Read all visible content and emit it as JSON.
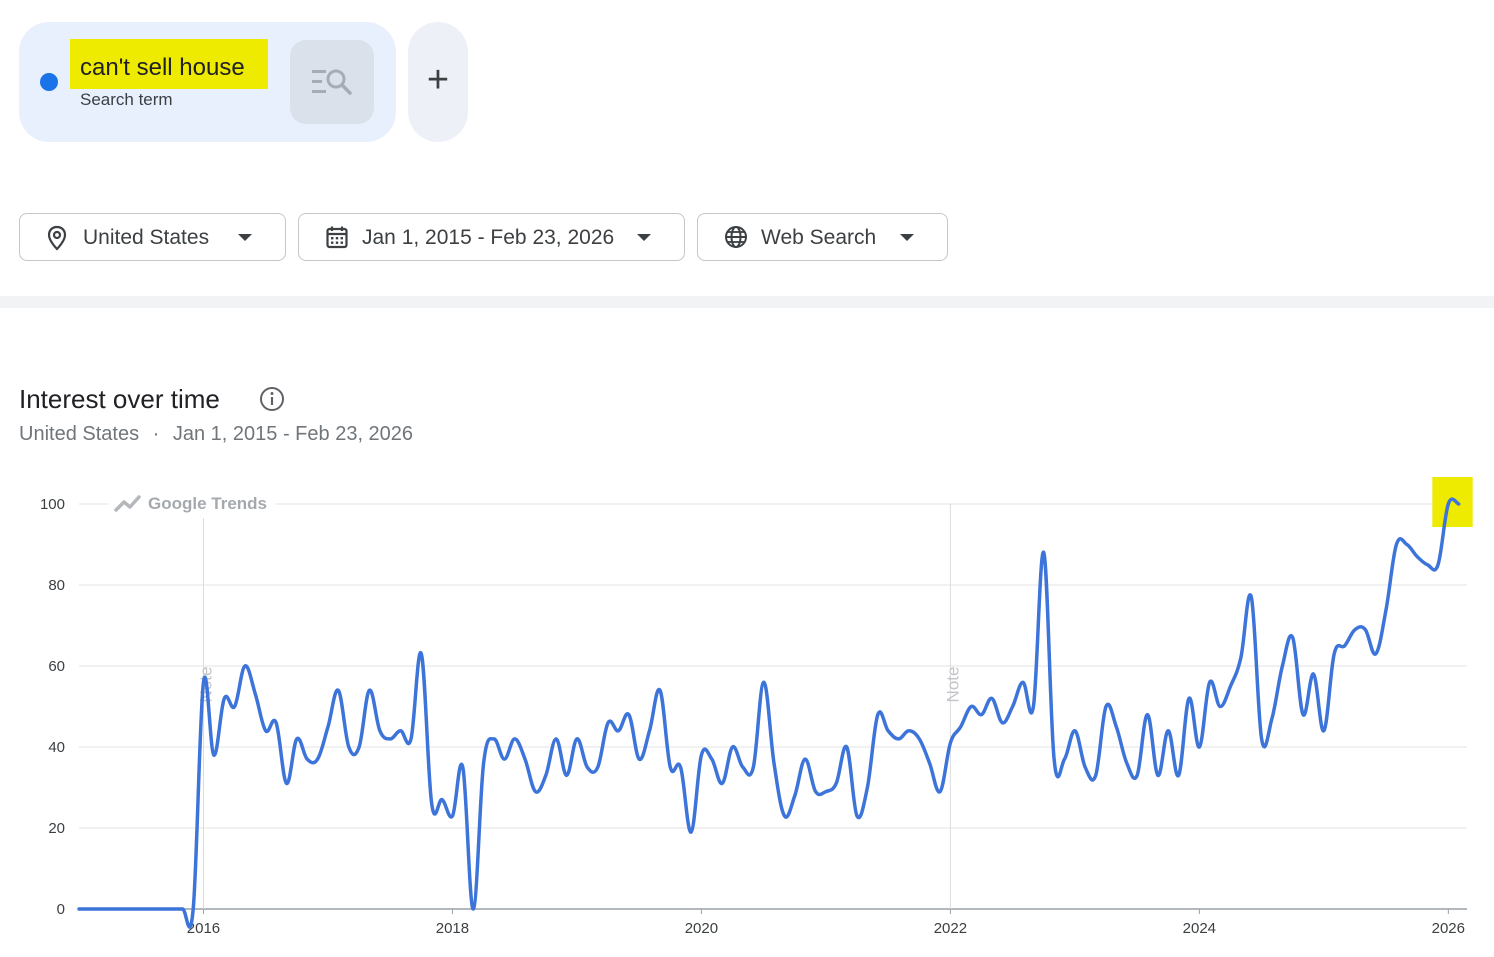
{
  "search_term": {
    "name": "can't sell house",
    "type_label": "Search term",
    "color": "#1a73e8",
    "highlight_color": "#eeea00",
    "compare_icon": "search-list-icon",
    "add_icon": "plus-icon",
    "add_label": "+"
  },
  "filters": {
    "location": {
      "label": "United States",
      "icon": "location-pin-icon"
    },
    "date_range": {
      "label": "Jan 1, 2015 - Feb 23, 2026",
      "icon": "calendar-icon"
    },
    "property": {
      "label": "Web Search",
      "icon": "globe-icon"
    }
  },
  "section": {
    "title": "Interest over time",
    "info_icon": "info-icon",
    "subtitle_location": "United States",
    "subtitle_separator": "·",
    "subtitle_range": "Jan 1, 2015 - Feb 23, 2026"
  },
  "chart_data": {
    "type": "line",
    "watermark": "Google Trends",
    "ylim": [
      0,
      100
    ],
    "yticks": [
      0,
      20,
      40,
      60,
      80,
      100
    ],
    "xlim": [
      2015.0,
      2026.15
    ],
    "xticks": [
      2016,
      2018,
      2020,
      2022,
      2024,
      2026
    ],
    "grid": true,
    "line_color": "#3d74d9",
    "notes": [
      {
        "x": 2016.0,
        "label": "Note"
      },
      {
        "x": 2022.0,
        "label": "Note"
      }
    ],
    "highlight_last_points": 2,
    "series": [
      {
        "x": [
          2015.0,
          2015.083,
          2015.167,
          2015.25,
          2015.333,
          2015.417,
          2015.5,
          2015.583,
          2015.667,
          2015.75,
          2015.833,
          2015.917,
          2016.0,
          2016.083,
          2016.167,
          2016.25,
          2016.333,
          2016.417,
          2016.5,
          2016.583,
          2016.667,
          2016.75,
          2016.833,
          2016.917,
          2017.0,
          2017.083,
          2017.167,
          2017.25,
          2017.333,
          2017.417,
          2017.5,
          2017.583,
          2017.667,
          2017.75,
          2017.833,
          2017.917,
          2018.0,
          2018.083,
          2018.167,
          2018.25,
          2018.333,
          2018.417,
          2018.5,
          2018.583,
          2018.667,
          2018.75,
          2018.833,
          2018.917,
          2019.0,
          2019.083,
          2019.167,
          2019.25,
          2019.333,
          2019.417,
          2019.5,
          2019.583,
          2019.667,
          2019.75,
          2019.833,
          2019.917,
          2020.0,
          2020.083,
          2020.167,
          2020.25,
          2020.333,
          2020.417,
          2020.5,
          2020.583,
          2020.667,
          2020.75,
          2020.833,
          2020.917,
          2021.0,
          2021.083,
          2021.167,
          2021.25,
          2021.333,
          2021.417,
          2021.5,
          2021.583,
          2021.667,
          2021.75,
          2021.833,
          2021.917,
          2022.0,
          2022.083,
          2022.167,
          2022.25,
          2022.333,
          2022.417,
          2022.5,
          2022.583,
          2022.667,
          2022.75,
          2022.833,
          2022.917,
          2023.0,
          2023.083,
          2023.167,
          2023.25,
          2023.333,
          2023.417,
          2023.5,
          2023.583,
          2023.667,
          2023.75,
          2023.833,
          2023.917,
          2024.0,
          2024.083,
          2024.167,
          2024.25,
          2024.333,
          2024.417,
          2024.5,
          2024.583,
          2024.667,
          2024.75,
          2024.833,
          2024.917,
          2025.0,
          2025.083,
          2025.167,
          2025.25,
          2025.333,
          2025.417,
          2025.5,
          2025.583,
          2025.667,
          2025.75,
          2025.833,
          2025.917,
          2026.0,
          2026.083
        ],
        "values": [
          0,
          0,
          0,
          0,
          0,
          0,
          0,
          0,
          0,
          0,
          0,
          0,
          56,
          38,
          52,
          50,
          60,
          53,
          44,
          46,
          31,
          42,
          37,
          37,
          45,
          54,
          40,
          40,
          54,
          44,
          42,
          44,
          42,
          63,
          26,
          27,
          23,
          35,
          0,
          36,
          42,
          37,
          42,
          37,
          29,
          33,
          42,
          33,
          42,
          35,
          35,
          46,
          44,
          48,
          37,
          44,
          54,
          35,
          35,
          19,
          38,
          37,
          31,
          40,
          35,
          35,
          56,
          36,
          23,
          28,
          37,
          29,
          29,
          31,
          40,
          23,
          30,
          48,
          44,
          42,
          44,
          42,
          36,
          29,
          41,
          45,
          50,
          48,
          52,
          46,
          50,
          56,
          50,
          88,
          37,
          37,
          44,
          35,
          33,
          50,
          45,
          36,
          33,
          48,
          33,
          44,
          33,
          52,
          40,
          56,
          50,
          55,
          62,
          77,
          42,
          47,
          60,
          67,
          48,
          58,
          44,
          63,
          65,
          69,
          69,
          63,
          74,
          90,
          90,
          87,
          85,
          85,
          100,
          100
        ]
      }
    ]
  }
}
